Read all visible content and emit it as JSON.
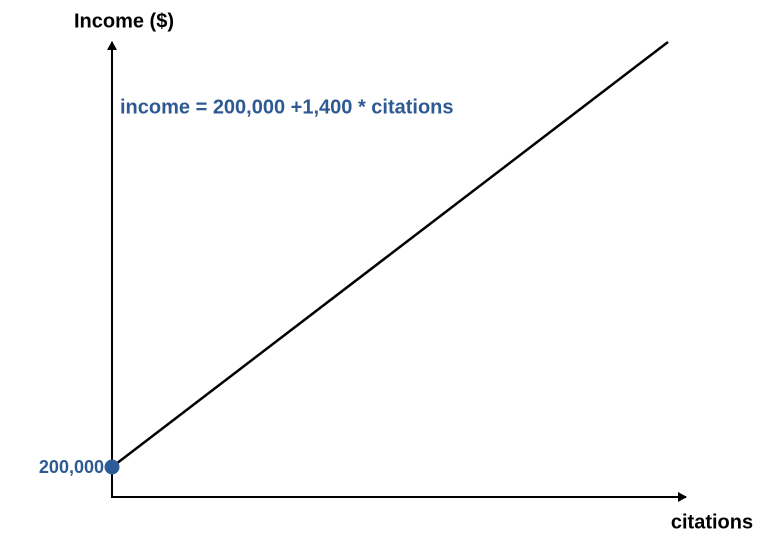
{
  "axes": {
    "y_label": "Income ($)",
    "x_label": "citations"
  },
  "annotation": "income = 200,000 +1,400 * citations",
  "intercept_label": "200,000"
}
